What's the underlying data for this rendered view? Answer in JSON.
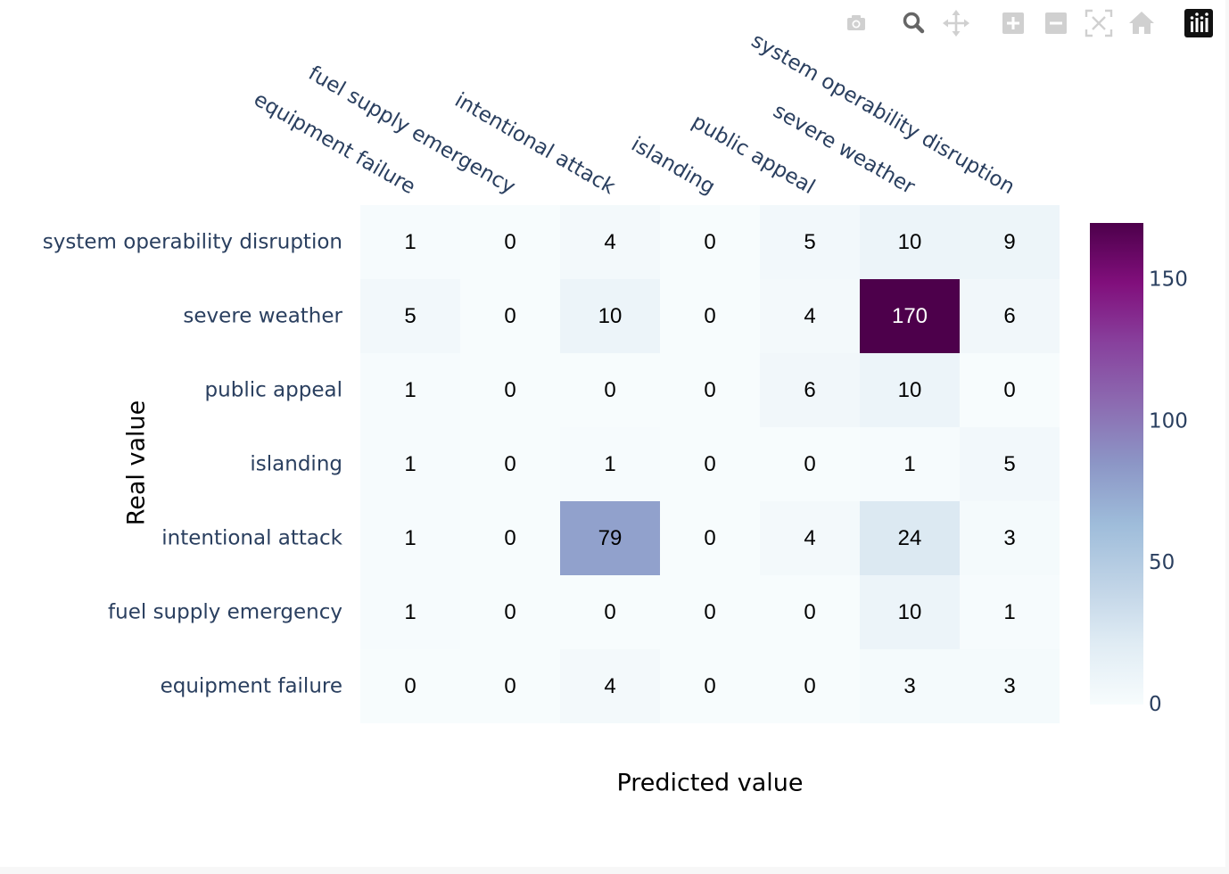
{
  "modebar": {
    "buttons": [
      {
        "name": "camera-icon",
        "title": "Download plot as a png"
      },
      {
        "name": "zoom-icon",
        "title": "Zoom"
      },
      {
        "name": "pan-icon",
        "title": "Pan"
      },
      {
        "name": "zoom-in-icon",
        "title": "Zoom in"
      },
      {
        "name": "zoom-out-icon",
        "title": "Zoom out"
      },
      {
        "name": "autoscale-icon",
        "title": "Autoscale"
      },
      {
        "name": "reset-axes-icon",
        "title": "Reset axes"
      },
      {
        "name": "plotly-logo-icon",
        "title": "Produced with Plotly"
      }
    ]
  },
  "chart_data": {
    "type": "heatmap",
    "title": "",
    "xlabel": "Predicted value",
    "ylabel": "Real value",
    "x": [
      "equipment failure",
      "fuel supply emergency",
      "intentional attack",
      "islanding",
      "public appeal",
      "severe weather",
      "system operability disruption"
    ],
    "y": [
      "system operability disruption",
      "severe weather",
      "public appeal",
      "islanding",
      "intentional attack",
      "fuel supply emergency",
      "equipment failure"
    ],
    "z": [
      [
        1,
        0,
        4,
        0,
        5,
        10,
        9
      ],
      [
        5,
        0,
        10,
        0,
        4,
        170,
        6
      ],
      [
        1,
        0,
        0,
        0,
        6,
        10,
        0
      ],
      [
        1,
        0,
        1,
        0,
        0,
        1,
        5
      ],
      [
        1,
        0,
        79,
        0,
        4,
        24,
        3
      ],
      [
        1,
        0,
        0,
        0,
        0,
        10,
        1
      ],
      [
        0,
        0,
        4,
        0,
        0,
        3,
        3
      ]
    ],
    "zmin": 0,
    "zmax": 170,
    "colorscale": "BuPu",
    "colorbar_ticks": [
      0,
      50,
      100,
      150
    ],
    "colorbar_tick_labels": [
      "0",
      "50",
      "100",
      "150"
    ],
    "text_dark_color": "#000000",
    "text_light_color": "#ffffff",
    "grid": false,
    "x_axis_side": "top"
  }
}
